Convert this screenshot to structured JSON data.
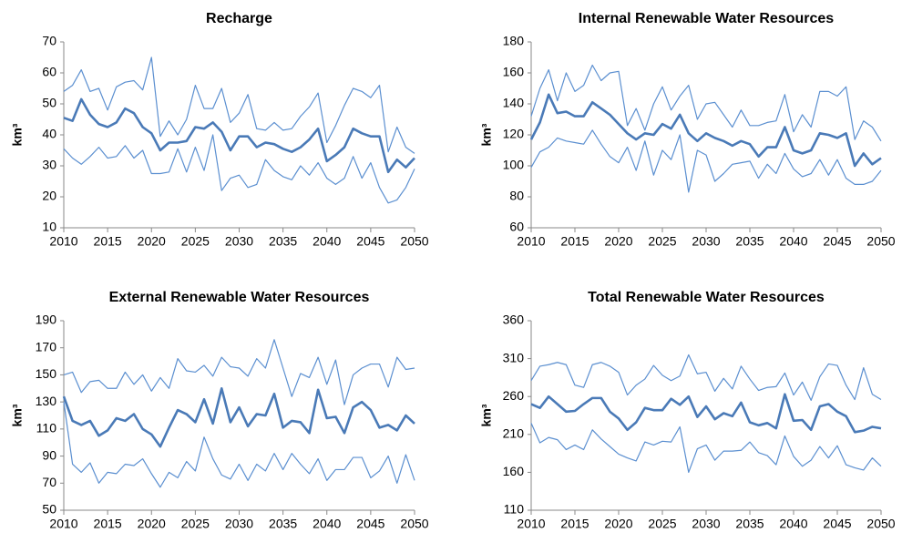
{
  "chart_data": [
    {
      "type": "line",
      "title": "Recharge",
      "y_label": "km³",
      "x": [
        2010,
        2011,
        2012,
        2013,
        2014,
        2015,
        2016,
        2017,
        2018,
        2019,
        2020,
        2021,
        2022,
        2023,
        2024,
        2025,
        2026,
        2027,
        2028,
        2029,
        2030,
        2031,
        2032,
        2033,
        2034,
        2035,
        2036,
        2037,
        2038,
        2039,
        2040,
        2041,
        2042,
        2043,
        2044,
        2045,
        2046,
        2047,
        2048,
        2049,
        2050
      ],
      "xlim": [
        2010,
        2050
      ],
      "xticks": [
        2010,
        2015,
        2020,
        2025,
        2030,
        2035,
        2040,
        2045,
        2050
      ],
      "ylim": [
        10,
        70
      ],
      "yticks": [
        10,
        20,
        30,
        40,
        50,
        60,
        70
      ],
      "series": [
        {
          "color": "#5b8fd0",
          "linewidth": 1.2,
          "values": [
            54,
            56,
            61,
            54,
            55,
            48,
            55.5,
            57,
            57.5,
            54.5,
            65,
            39.5,
            44.5,
            40,
            45,
            56,
            48.5,
            48.5,
            55,
            44,
            47,
            53,
            42,
            41.5,
            44,
            41.5,
            42,
            46,
            49,
            53.5,
            37.5,
            43,
            49.5,
            55,
            54,
            52,
            56,
            34.5,
            42.5,
            36,
            34
          ]
        },
        {
          "color": "#4a7ab7",
          "linewidth": 2.6,
          "values": [
            45.5,
            44.5,
            51.5,
            46.5,
            43.5,
            42.5,
            44,
            48.5,
            47,
            42.5,
            40.5,
            35,
            37.5,
            37.5,
            38,
            42.5,
            42,
            44,
            41,
            35,
            39.5,
            39.5,
            36,
            37.5,
            37,
            35.5,
            34.5,
            36,
            38.5,
            42,
            31.5,
            33.5,
            36,
            42,
            40.5,
            39.5,
            39.5,
            28,
            32,
            29.5,
            32.5
          ]
        },
        {
          "color": "#5b8fd0",
          "linewidth": 1.2,
          "values": [
            35.5,
            32.5,
            30.5,
            33,
            36,
            32.5,
            33,
            36.5,
            32.5,
            35,
            27.5,
            27.5,
            28,
            35.5,
            28,
            36,
            28.5,
            40,
            22,
            26,
            27,
            23,
            24,
            32,
            28.5,
            26.5,
            25.5,
            30,
            27,
            31,
            26,
            24,
            26,
            33,
            26,
            31,
            23,
            18,
            19,
            23,
            29
          ]
        }
      ]
    },
    {
      "type": "line",
      "title": "Internal Renewable Water Resources",
      "y_label": "km³",
      "x": [
        2010,
        2011,
        2012,
        2013,
        2014,
        2015,
        2016,
        2017,
        2018,
        2019,
        2020,
        2021,
        2022,
        2023,
        2024,
        2025,
        2026,
        2027,
        2028,
        2029,
        2030,
        2031,
        2032,
        2033,
        2034,
        2035,
        2036,
        2037,
        2038,
        2039,
        2040,
        2041,
        2042,
        2043,
        2044,
        2045,
        2046,
        2047,
        2048,
        2049,
        2050
      ],
      "xlim": [
        2010,
        2050
      ],
      "xticks": [
        2010,
        2015,
        2020,
        2025,
        2030,
        2035,
        2040,
        2045,
        2050
      ],
      "ylim": [
        60,
        180
      ],
      "yticks": [
        60,
        80,
        100,
        120,
        140,
        160,
        180
      ],
      "series": [
        {
          "color": "#5b8fd0",
          "linewidth": 1.2,
          "values": [
            132,
            150,
            162,
            142,
            160,
            148,
            152,
            165,
            155,
            160,
            161,
            126,
            137,
            123,
            140,
            151,
            136,
            145,
            152,
            130,
            140,
            141,
            133,
            125,
            136,
            126,
            126,
            128,
            129,
            146,
            122,
            133,
            125,
            148,
            148,
            145,
            151,
            117,
            129,
            125,
            116
          ]
        },
        {
          "color": "#4a7ab7",
          "linewidth": 2.6,
          "values": [
            117,
            128,
            146,
            134,
            135,
            132,
            132,
            141,
            137,
            133,
            127,
            121,
            117,
            121,
            120,
            127,
            124,
            133,
            121,
            116,
            121,
            118,
            116,
            113,
            116,
            114,
            106,
            112,
            112,
            125,
            110,
            108,
            110,
            121,
            120,
            118,
            121,
            100,
            108,
            101,
            105
          ]
        },
        {
          "color": "#5b8fd0",
          "linewidth": 1.2,
          "values": [
            99,
            109,
            112,
            118,
            116,
            115,
            114,
            123,
            114,
            106,
            102,
            112,
            97,
            116,
            94,
            110,
            104,
            120,
            83,
            110,
            107,
            90,
            95,
            101,
            102,
            103,
            92,
            101,
            95,
            108,
            98,
            93,
            95,
            104,
            94,
            104,
            92,
            88,
            88,
            90,
            97
          ]
        }
      ]
    },
    {
      "type": "line",
      "title": "External Renewable Water Resources",
      "y_label": "km³",
      "x": [
        2010,
        2011,
        2012,
        2013,
        2014,
        2015,
        2016,
        2017,
        2018,
        2019,
        2020,
        2021,
        2022,
        2023,
        2024,
        2025,
        2026,
        2027,
        2028,
        2029,
        2030,
        2031,
        2032,
        2033,
        2034,
        2035,
        2036,
        2037,
        2038,
        2039,
        2040,
        2041,
        2042,
        2043,
        2044,
        2045,
        2046,
        2047,
        2048,
        2049,
        2050
      ],
      "xlim": [
        2010,
        2050
      ],
      "xticks": [
        2010,
        2015,
        2020,
        2025,
        2030,
        2035,
        2040,
        2045,
        2050
      ],
      "ylim": [
        50,
        190
      ],
      "yticks": [
        50,
        70,
        90,
        110,
        130,
        150,
        170,
        190
      ],
      "series": [
        {
          "color": "#5b8fd0",
          "linewidth": 1.2,
          "values": [
            150,
            152,
            137,
            145,
            146,
            140,
            140,
            152,
            143,
            150,
            138,
            148,
            140,
            162,
            153,
            152,
            157,
            149,
            163,
            156,
            155,
            149,
            162,
            155,
            176,
            155,
            134,
            151,
            148,
            163,
            143,
            161,
            128,
            150,
            155,
            158,
            158,
            141,
            163,
            154,
            155
          ]
        },
        {
          "color": "#4a7ab7",
          "linewidth": 2.6,
          "values": [
            134,
            116,
            113,
            116,
            105,
            109,
            118,
            116,
            121,
            110,
            106,
            97,
            111,
            124,
            121,
            115,
            132,
            114,
            140,
            115,
            126,
            112,
            121,
            120,
            136,
            111,
            116,
            115,
            107,
            139,
            118,
            119,
            107,
            126,
            130,
            124,
            111,
            113,
            109,
            120,
            114
          ]
        },
        {
          "color": "#5b8fd0",
          "linewidth": 1.2,
          "values": [
            130,
            84,
            78,
            85,
            70,
            78,
            77,
            84,
            83,
            88,
            77,
            67,
            78,
            74,
            86,
            79,
            104,
            88,
            76,
            73,
            84,
            72,
            84,
            79,
            92,
            80,
            92,
            84,
            77,
            88,
            72,
            80,
            80,
            89,
            89,
            74,
            79,
            90,
            70,
            91,
            72
          ]
        }
      ]
    },
    {
      "type": "line",
      "title": "Total Renewable Water Resources",
      "y_label": "km³",
      "x": [
        2010,
        2011,
        2012,
        2013,
        2014,
        2015,
        2016,
        2017,
        2018,
        2019,
        2020,
        2021,
        2022,
        2023,
        2024,
        2025,
        2026,
        2027,
        2028,
        2029,
        2030,
        2031,
        2032,
        2033,
        2034,
        2035,
        2036,
        2037,
        2038,
        2039,
        2040,
        2041,
        2042,
        2043,
        2044,
        2045,
        2046,
        2047,
        2048,
        2049,
        2050
      ],
      "xlim": [
        2010,
        2050
      ],
      "xticks": [
        2010,
        2015,
        2020,
        2025,
        2030,
        2035,
        2040,
        2045,
        2050
      ],
      "ylim": [
        110,
        360
      ],
      "yticks": [
        110,
        160,
        210,
        260,
        310,
        360
      ],
      "series": [
        {
          "color": "#5b8fd0",
          "linewidth": 1.2,
          "values": [
            281,
            300,
            302,
            305,
            302,
            275,
            272,
            302,
            305,
            300,
            292,
            262,
            275,
            283,
            301,
            288,
            281,
            287,
            315,
            290,
            292,
            267,
            284,
            270,
            300,
            283,
            268,
            272,
            273,
            291,
            262,
            279,
            255,
            286,
            303,
            301,
            275,
            256,
            298,
            263,
            256
          ]
        },
        {
          "color": "#4a7ab7",
          "linewidth": 2.6,
          "values": [
            250,
            245,
            260,
            250,
            240,
            241,
            250,
            258,
            258,
            240,
            231,
            216,
            226,
            245,
            242,
            242,
            257,
            249,
            260,
            233,
            247,
            230,
            238,
            234,
            252,
            226,
            222,
            225,
            218,
            263,
            228,
            229,
            216,
            247,
            250,
            240,
            234,
            213,
            215,
            220,
            218
          ]
        },
        {
          "color": "#5b8fd0",
          "linewidth": 1.2,
          "values": [
            225,
            199,
            206,
            203,
            190,
            196,
            190,
            216,
            204,
            194,
            184,
            179,
            175,
            200,
            196,
            201,
            200,
            220,
            160,
            191,
            196,
            176,
            188,
            188,
            189,
            200,
            186,
            182,
            170,
            208,
            181,
            168,
            176,
            194,
            179,
            195,
            170,
            166,
            163,
            179,
            168
          ]
        }
      ]
    }
  ]
}
